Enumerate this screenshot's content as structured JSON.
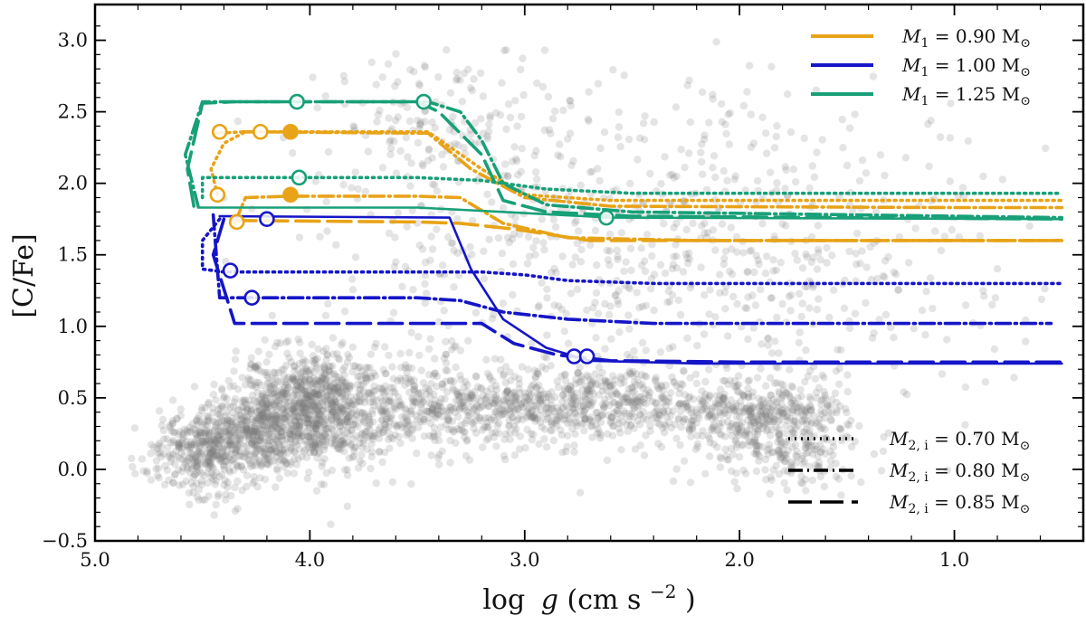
{
  "chart_data": {
    "type": "scatter",
    "title": "",
    "xlabel": "log g (cm s^-2)",
    "xlabel_parts": {
      "log": "log",
      "g": "g",
      "unit_open": " (cm s",
      "exp": "−2",
      "unit_close": ")"
    },
    "ylabel": "[C/Fe]",
    "xlim": [
      5.0,
      0.4
    ],
    "ylim": [
      -0.5,
      3.25
    ],
    "x_inverted": true,
    "grid": false,
    "x_ticks": [
      {
        "value": 5.0,
        "label": "5.0"
      },
      {
        "value": 4.0,
        "label": "4.0"
      },
      {
        "value": 3.0,
        "label": "3.0"
      },
      {
        "value": 2.0,
        "label": "2.0"
      },
      {
        "value": 1.0,
        "label": "1.0"
      }
    ],
    "y_ticks": [
      {
        "value": -0.5,
        "label": "−0.5"
      },
      {
        "value": 0.0,
        "label": "0.0"
      },
      {
        "value": 0.5,
        "label": "0.5"
      },
      {
        "value": 1.0,
        "label": "1.0"
      },
      {
        "value": 1.5,
        "label": "1.5"
      },
      {
        "value": 2.0,
        "label": "2.0"
      },
      {
        "value": 2.5,
        "label": "2.5"
      },
      {
        "value": 3.0,
        "label": "3.0"
      }
    ],
    "colors": {
      "m090": "#e8a317",
      "m100": "#1515c8",
      "m125": "#18a078",
      "scatter": "#777777"
    },
    "legend_mass": {
      "placement": "top-right",
      "entries": [
        {
          "color_key": "m090",
          "label": "M1 = 0.90 M⊙",
          "sym": "M",
          "sub": "1",
          "value": " = 0.90 M",
          "sun": "⊙"
        },
        {
          "color_key": "m100",
          "label": "M1 = 1.00 M⊙",
          "sym": "M",
          "sub": "1",
          "value": " = 1.00 M",
          "sun": "⊙"
        },
        {
          "color_key": "m125",
          "label": "M1 = 1.25 M⊙",
          "sym": "M",
          "sub": "1",
          "value": " = 1.25 M",
          "sun": "⊙"
        }
      ]
    },
    "legend_companion": {
      "placement": "bottom-right",
      "entries": [
        {
          "style": "dotted",
          "label": "M2,i = 0.70 M⊙",
          "sym": "M",
          "sub": "2, i",
          "value": " = 0.70 M",
          "sun": "⊙"
        },
        {
          "style": "dashdot",
          "label": "M2,i = 0.80 M⊙",
          "sym": "M",
          "sub": "2, i",
          "value": " = 0.80 M",
          "sun": "⊙"
        },
        {
          "style": "longdash",
          "label": "M2,i = 0.85 M⊙",
          "sym": "M",
          "sub": "2, i",
          "value": " = 0.85 M",
          "sun": "⊙"
        }
      ]
    },
    "scatter_clusters": [
      {
        "cx": 4.0,
        "cy": 0.42,
        "sx": 0.17,
        "sy": 0.2,
        "n": 850
      },
      {
        "cx": 4.5,
        "cy": 0.12,
        "sx": 0.12,
        "sy": 0.14,
        "n": 380
      },
      {
        "cx": 4.25,
        "cy": 0.25,
        "sx": 0.12,
        "sy": 0.15,
        "n": 300
      },
      {
        "cx": 2.7,
        "cy": 0.45,
        "sx": 0.42,
        "sy": 0.13,
        "n": 700
      },
      {
        "cx": 3.5,
        "cy": 0.45,
        "sx": 0.3,
        "sy": 0.18,
        "n": 400
      },
      {
        "cx": 1.9,
        "cy": 0.35,
        "sx": 0.2,
        "sy": 0.14,
        "n": 320
      },
      {
        "cx": 1.75,
        "cy": 0.15,
        "sx": 0.15,
        "sy": 0.14,
        "n": 160
      },
      {
        "cx": 3.4,
        "cy": 2.4,
        "sx": 0.25,
        "sy": 0.25,
        "n": 120
      },
      {
        "cx": 2.6,
        "cy": 1.6,
        "sx": 0.7,
        "sy": 0.6,
        "n": 650
      },
      {
        "cx": 1.5,
        "cy": 1.3,
        "sx": 0.5,
        "sy": 0.6,
        "n": 160
      }
    ],
    "series": [
      {
        "name": "M1=0.90, M2,i=0.70",
        "color_key": "m090",
        "style": "dotted",
        "points": [
          [
            4.43,
            1.92
          ],
          [
            4.46,
            2.1
          ],
          [
            4.4,
            2.28
          ],
          [
            4.3,
            2.36
          ],
          [
            3.7,
            2.36
          ],
          [
            3.45,
            2.36
          ],
          [
            3.2,
            2.1
          ],
          [
            3.0,
            1.92
          ],
          [
            2.6,
            1.88
          ],
          [
            1.0,
            1.88
          ],
          [
            0.5,
            1.88
          ]
        ]
      },
      {
        "name": "M1=0.90, M2,i=0.80",
        "color_key": "m090",
        "style": "dashdot",
        "points": [
          [
            4.44,
            2.35
          ],
          [
            4.3,
            2.36
          ],
          [
            3.45,
            2.35
          ],
          [
            3.25,
            2.1
          ],
          [
            3.0,
            1.9
          ],
          [
            2.6,
            1.84
          ],
          [
            1.0,
            1.83
          ],
          [
            0.5,
            1.83
          ]
        ]
      },
      {
        "name": "M1=0.90, M2,i=0.80 second",
        "color_key": "m090",
        "style": "dashdot",
        "points": [
          [
            4.35,
            1.72
          ],
          [
            4.3,
            1.9
          ],
          [
            4.1,
            1.91
          ],
          [
            3.5,
            1.91
          ],
          [
            3.3,
            1.9
          ],
          [
            3.1,
            1.72
          ],
          [
            2.8,
            1.62
          ],
          [
            2.2,
            1.6
          ],
          [
            0.5,
            1.6
          ]
        ]
      },
      {
        "name": "M1=0.90, M2,i=0.85",
        "color_key": "m090",
        "style": "longdash",
        "points": [
          [
            4.36,
            1.74
          ],
          [
            3.5,
            1.73
          ],
          [
            3.3,
            1.72
          ],
          [
            3.05,
            1.68
          ],
          [
            2.7,
            1.6
          ],
          [
            2.0,
            1.6
          ],
          [
            0.5,
            1.6
          ]
        ]
      },
      {
        "name": "M1=1.00, M2,i=0.70",
        "color_key": "m100",
        "style": "dotted",
        "points": [
          [
            4.42,
            1.75
          ],
          [
            4.5,
            1.6
          ],
          [
            4.5,
            1.4
          ],
          [
            4.4,
            1.38
          ],
          [
            3.5,
            1.38
          ],
          [
            3.2,
            1.38
          ],
          [
            3.0,
            1.36
          ],
          [
            2.8,
            1.32
          ],
          [
            2.4,
            1.3
          ],
          [
            0.5,
            1.3
          ]
        ]
      },
      {
        "name": "M1=1.00, M2,i=0.80",
        "color_key": "m100",
        "style": "dashdot",
        "points": [
          [
            4.45,
            1.78
          ],
          [
            4.42,
            1.2
          ],
          [
            3.5,
            1.2
          ],
          [
            3.3,
            1.18
          ],
          [
            3.1,
            1.1
          ],
          [
            2.8,
            1.05
          ],
          [
            2.4,
            1.02
          ],
          [
            0.55,
            1.02
          ]
        ]
      },
      {
        "name": "M1=1.00, M2,i=0.85",
        "color_key": "m100",
        "style": "longdash",
        "points": [
          [
            4.4,
            1.75
          ],
          [
            4.45,
            1.5
          ],
          [
            4.35,
            1.02
          ],
          [
            3.5,
            1.02
          ],
          [
            3.2,
            1.02
          ],
          [
            3.05,
            0.88
          ],
          [
            2.85,
            0.8
          ],
          [
            2.6,
            0.76
          ],
          [
            2.0,
            0.75
          ],
          [
            0.5,
            0.75
          ]
        ]
      },
      {
        "name": "M1=1.00 solid",
        "color_key": "m100",
        "style": "solid",
        "points": [
          [
            4.42,
            1.77
          ],
          [
            3.35,
            1.76
          ],
          [
            3.25,
            1.4
          ],
          [
            3.1,
            1.05
          ],
          [
            2.9,
            0.85
          ],
          [
            2.7,
            0.76
          ],
          [
            2.2,
            0.74
          ],
          [
            0.5,
            0.74
          ]
        ]
      },
      {
        "name": "M1=1.25, M2,i=0.70",
        "color_key": "m125",
        "style": "dotted",
        "points": [
          [
            4.5,
            1.9
          ],
          [
            4.5,
            2.04
          ],
          [
            4.2,
            2.04
          ],
          [
            3.5,
            2.04
          ],
          [
            3.2,
            2.02
          ],
          [
            2.9,
            1.96
          ],
          [
            2.5,
            1.93
          ],
          [
            1.5,
            1.93
          ],
          [
            0.5,
            1.93
          ]
        ]
      },
      {
        "name": "M1=1.25, M2,i=0.80",
        "color_key": "m125",
        "style": "dashdot",
        "points": [
          [
            4.52,
            1.84
          ],
          [
            4.58,
            2.2
          ],
          [
            4.5,
            2.57
          ],
          [
            4.0,
            2.57
          ],
          [
            3.45,
            2.57
          ],
          [
            3.3,
            2.5
          ],
          [
            3.2,
            2.3
          ],
          [
            3.1,
            2.0
          ],
          [
            2.9,
            1.85
          ],
          [
            2.5,
            1.8
          ],
          [
            0.5,
            1.76
          ]
        ]
      },
      {
        "name": "M1=1.25, M2,i=0.85",
        "color_key": "m125",
        "style": "longdash",
        "points": [
          [
            4.54,
            1.84
          ],
          [
            4.57,
            2.1
          ],
          [
            4.5,
            2.56
          ],
          [
            4.35,
            2.57
          ],
          [
            3.5,
            2.57
          ],
          [
            3.4,
            2.5
          ],
          [
            3.2,
            2.2
          ],
          [
            3.1,
            1.88
          ],
          [
            2.9,
            1.8
          ],
          [
            2.5,
            1.77
          ],
          [
            0.5,
            1.75
          ]
        ]
      },
      {
        "name": "M1=1.25 base",
        "color_key": "m125",
        "style": "solid",
        "points": [
          [
            4.52,
            1.83
          ],
          [
            3.5,
            1.83
          ],
          [
            3.1,
            1.8
          ],
          [
            2.6,
            1.76
          ],
          [
            0.5,
            1.75
          ]
        ]
      }
    ],
    "markers": [
      {
        "x": 4.42,
        "y": 2.36,
        "color_key": "m090",
        "filled": false
      },
      {
        "x": 4.23,
        "y": 2.36,
        "color_key": "m090",
        "filled": false
      },
      {
        "x": 4.09,
        "y": 2.36,
        "color_key": "m090",
        "filled": true
      },
      {
        "x": 4.43,
        "y": 1.92,
        "color_key": "m090",
        "filled": false
      },
      {
        "x": 4.09,
        "y": 1.92,
        "color_key": "m090",
        "filled": true
      },
      {
        "x": 4.34,
        "y": 1.73,
        "color_key": "m090",
        "filled": false
      },
      {
        "x": 4.37,
        "y": 1.39,
        "color_key": "m100",
        "filled": false
      },
      {
        "x": 4.27,
        "y": 1.2,
        "color_key": "m100",
        "filled": false
      },
      {
        "x": 4.2,
        "y": 1.75,
        "color_key": "m100",
        "filled": false
      },
      {
        "x": 2.77,
        "y": 0.79,
        "color_key": "m100",
        "filled": false
      },
      {
        "x": 2.71,
        "y": 0.79,
        "color_key": "m100",
        "filled": false
      },
      {
        "x": 4.06,
        "y": 2.57,
        "color_key": "m125",
        "filled": false
      },
      {
        "x": 3.47,
        "y": 2.57,
        "color_key": "m125",
        "filled": false
      },
      {
        "x": 4.05,
        "y": 2.04,
        "color_key": "m125",
        "filled": false
      },
      {
        "x": 2.62,
        "y": 1.76,
        "color_key": "m125",
        "filled": false
      }
    ]
  }
}
